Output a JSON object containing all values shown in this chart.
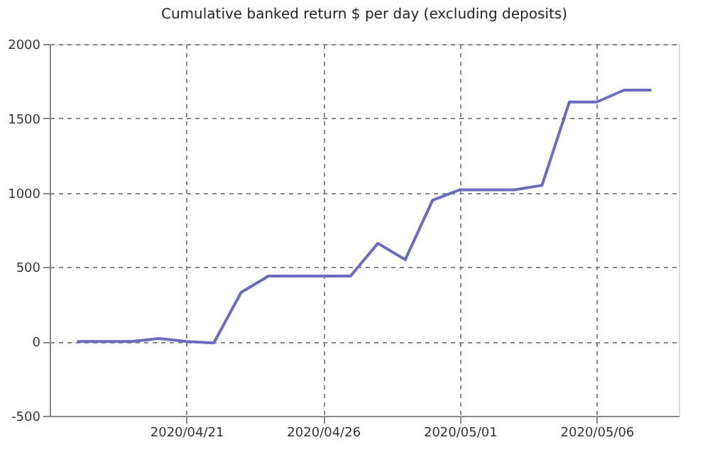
{
  "chart_data": {
    "type": "line",
    "title": "Cumulative banked return $ per day (excluding deposits)",
    "x": [
      "2020-04-17",
      "2020-04-18",
      "2020-04-19",
      "2020-04-20",
      "2020-04-21",
      "2020-04-22",
      "2020-04-23",
      "2020-04-24",
      "2020-04-25",
      "2020-04-26",
      "2020-04-27",
      "2020-04-28",
      "2020-04-29",
      "2020-04-30",
      "2020-05-01",
      "2020-05-02",
      "2020-05-03",
      "2020-05-04",
      "2020-05-05",
      "2020-05-06",
      "2020-05-07",
      "2020-05-08"
    ],
    "series": [
      {
        "color": "#6b6bc0",
        "values": [
          0,
          0,
          0,
          20,
          0,
          -10,
          330,
          440,
          440,
          440,
          440,
          660,
          550,
          950,
          1020,
          1020,
          1020,
          1050,
          1610,
          1610,
          1690,
          1690
        ]
      }
    ],
    "xlim": [
      "2020-04-16",
      "2020-05-09"
    ],
    "xticks": [
      {
        "value": "2020-04-21",
        "label": "2020/04/21"
      },
      {
        "value": "2020-04-26",
        "label": "2020/04/26"
      },
      {
        "value": "2020-05-01",
        "label": "2020/05/01"
      },
      {
        "value": "2020-05-06",
        "label": "2020/05/06"
      }
    ],
    "ylim": [
      -500,
      2000
    ],
    "yticks": [
      -500,
      0,
      500,
      1000,
      1500,
      2000
    ],
    "grid": true,
    "line_style": "solid",
    "marker": "none"
  }
}
